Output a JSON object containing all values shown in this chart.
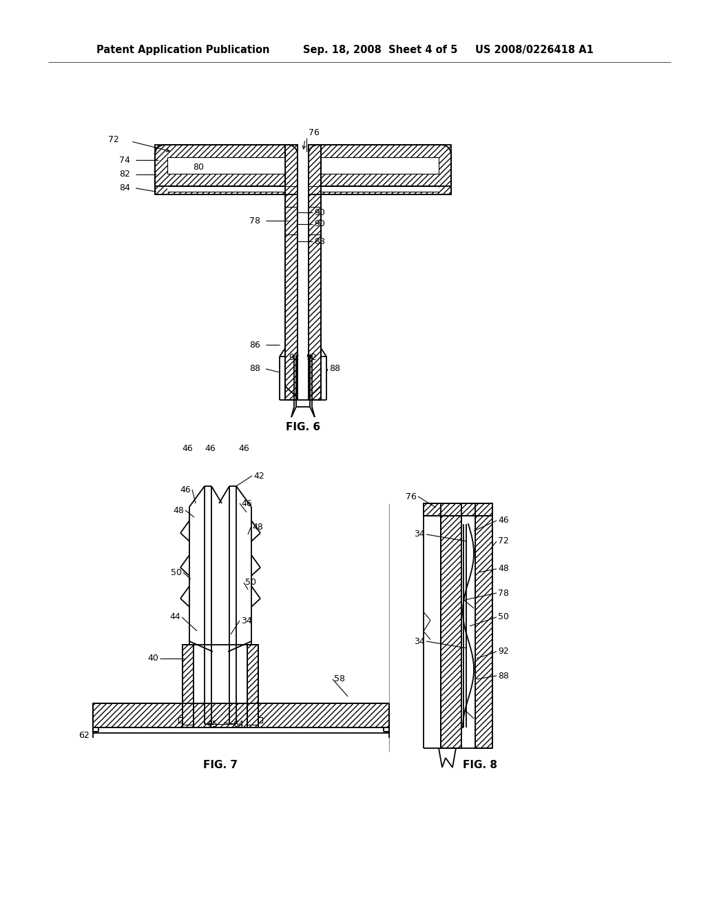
{
  "background_color": "#ffffff",
  "header_text_left": "Patent Application Publication",
  "header_text_mid": "Sep. 18, 2008  Sheet 4 of 5",
  "header_text_right": "US 2008/0226418 A1",
  "fig6_caption": "FIG. 6",
  "fig7_caption": "FIG. 7",
  "fig8_caption": "FIG. 8",
  "line_color": "#000000",
  "font_size_header": 10.5,
  "font_size_label": 9,
  "font_size_caption": 11
}
